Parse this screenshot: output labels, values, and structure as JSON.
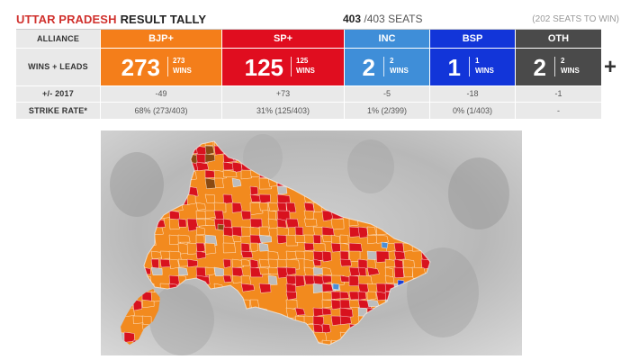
{
  "header": {
    "title_state": "UTTAR PRADESH",
    "title_rest": "RESULT TALLY",
    "seats_count": "403",
    "seats_total": "/403 SEATS",
    "to_win": "(202 SEATS TO WIN)"
  },
  "row_labels": {
    "alliance": "ALLIANCE",
    "wins_leads": "WINS + LEADS",
    "diff": "+/- 2017",
    "strike": "STRIKE RATE*"
  },
  "parties": [
    {
      "name": "BJP+",
      "total": "273",
      "wins": "273",
      "wins_label": "WINS",
      "diff": "-49",
      "strike": "68% (273/403)",
      "color": "#f47e1a"
    },
    {
      "name": "SP+",
      "total": "125",
      "wins": "125",
      "wins_label": "WINS",
      "diff": "+73",
      "strike": "31% (125/403)",
      "color": "#e00d1f"
    },
    {
      "name": "INC",
      "total": "2",
      "wins": "2",
      "wins_label": "WINS",
      "diff": "-5",
      "strike": "1% (2/399)",
      "color": "#3f8ed8"
    },
    {
      "name": "BSP",
      "total": "1",
      "wins": "1",
      "wins_label": "WINS",
      "diff": "-18",
      "strike": "0% (1/403)",
      "color": "#1235d9"
    },
    {
      "name": "OTH",
      "total": "2",
      "wins": "2",
      "wins_label": "WINS",
      "diff": "-1",
      "strike": "-",
      "color": "#4a4a4a"
    }
  ],
  "expand_symbol": "+",
  "map": {
    "colors": {
      "bjp": "#f28a1e",
      "sp": "#d8121e",
      "inc": "#4b8fd6",
      "bsp": "#1b3fd6",
      "oth": "#bdbdbd",
      "rld": "#8a4a12",
      "border": "#ffffff"
    }
  }
}
